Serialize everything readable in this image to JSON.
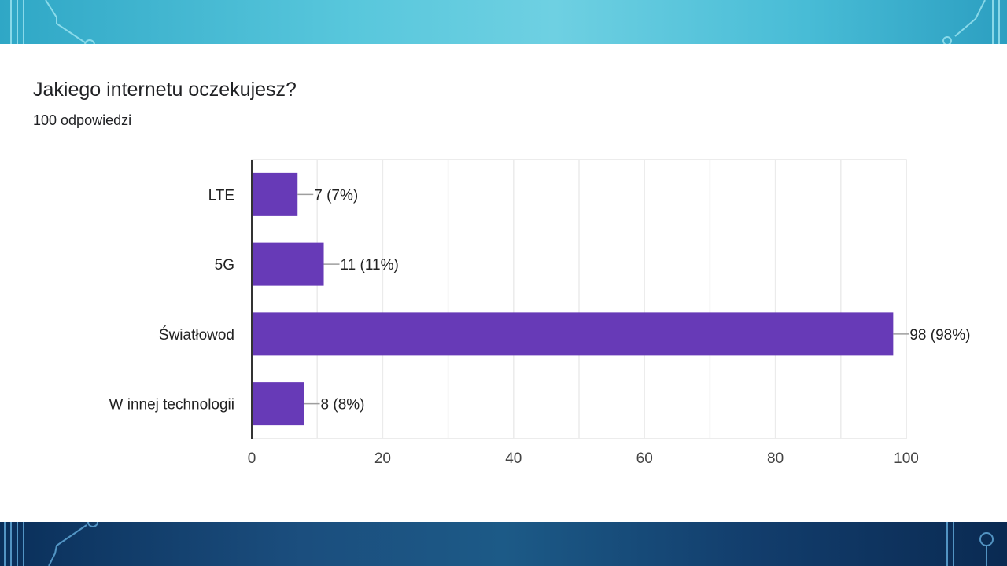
{
  "question": {
    "title": "Jakiego internetu oczekujesz?",
    "responses": "100 odpowiedzi"
  },
  "colors": {
    "bar": "#673ab7",
    "top_band": "#58c7dc",
    "bottom_band": "#1c5a87"
  },
  "chart_data": {
    "type": "bar",
    "orientation": "horizontal",
    "categories": [
      "LTE",
      "5G",
      "Światłowod",
      "W innej technologii"
    ],
    "values": [
      7,
      11,
      98,
      8
    ],
    "data_labels": [
      "7 (7%)",
      "11 (11%)",
      "98 (98%)",
      "8 (8%)"
    ],
    "xlim": [
      0,
      100
    ],
    "x_ticks": [
      0,
      20,
      40,
      60,
      80,
      100
    ],
    "grid": true
  }
}
